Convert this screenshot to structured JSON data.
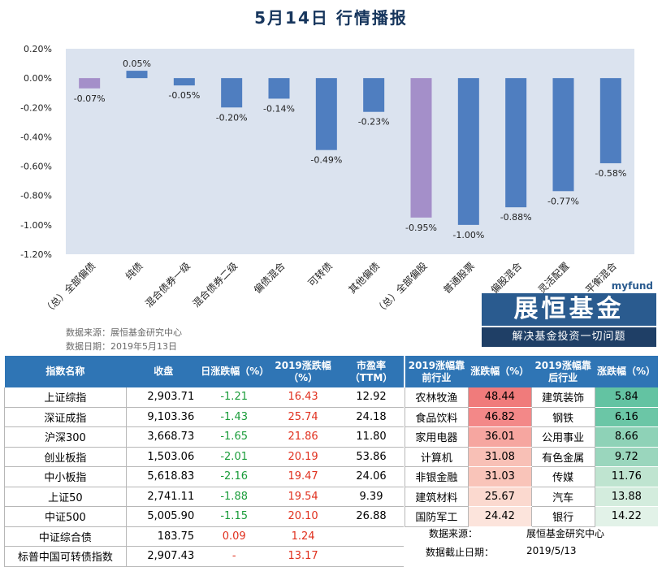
{
  "title": "5月14日  行情播报",
  "chart_data": {
    "type": "bar",
    "categories": [
      "（总）全部偏债",
      "纯债",
      "混合债券一级",
      "混合债券二级",
      "偏债混合",
      "可转债",
      "其他偏债",
      "（总）全部偏股",
      "普通股票",
      "偏股混合",
      "灵活配置",
      "平衡混合"
    ],
    "values": [
      -0.07,
      0.05,
      -0.05,
      -0.2,
      -0.14,
      -0.49,
      -0.23,
      -0.95,
      -1.0,
      -0.88,
      -0.77,
      -0.58
    ],
    "data_labels": [
      "-0.07%",
      "0.05%",
      "-0.05%",
      "-0.20%",
      "-0.14%",
      "-0.49%",
      "-0.23%",
      "-0.95%",
      "-1.00%",
      "-0.88%",
      "-0.77%",
      "-0.58%"
    ],
    "yticks": [
      "0.20%",
      "0.00%",
      "-0.20%",
      "-0.40%",
      "-0.60%",
      "-0.80%",
      "-1.00%",
      "-1.20%"
    ],
    "ylim": [
      -1.2,
      0.2
    ],
    "highlight_colors": [
      "#a48fc9",
      "#4f7ec0",
      "#4f7ec0",
      "#4f7ec0",
      "#4f7ec0",
      "#4f7ec0",
      "#4f7ec0",
      "#a48fc9",
      "#4f7ec0",
      "#4f7ec0",
      "#4f7ec0",
      "#4f7ec0"
    ],
    "plot_bg": "#dbe3ef"
  },
  "source_line1": "数据来源：展恒基金研究中心",
  "source_line2": "数据日期：2019年5月13日",
  "logo": {
    "myfund": "myfund",
    "brand": "展恒基金",
    "slogan": "解决基金投资一切问题"
  },
  "index_table": {
    "headers": [
      "指数名称",
      "收盘",
      "日涨跌幅（%）",
      "2019涨跌幅（%）",
      "市盈率（TTM）"
    ],
    "rows": [
      [
        "上证综指",
        "2,903.71",
        "-1.21",
        "16.43",
        "12.92"
      ],
      [
        "深证成指",
        "9,103.36",
        "-1.43",
        "25.74",
        "24.18"
      ],
      [
        "沪深300",
        "3,668.73",
        "-1.65",
        "21.86",
        "11.80"
      ],
      [
        "创业板指",
        "1,503.06",
        "-2.01",
        "20.19",
        "53.86"
      ],
      [
        "中小板指",
        "5,618.83",
        "-2.16",
        "19.47",
        "24.06"
      ],
      [
        "上证50",
        "2,741.11",
        "-1.88",
        "19.54",
        "9.39"
      ],
      [
        "中证500",
        "5,005.90",
        "-1.15",
        "20.10",
        "26.88"
      ],
      [
        "中证综合债",
        "183.75",
        "0.09",
        "1.24",
        ""
      ],
      [
        "标普中国可转债指数",
        "2,907.43",
        "-",
        "13.17",
        ""
      ]
    ]
  },
  "industry_table": {
    "headers": [
      "2019涨幅靠前行业",
      "涨跌幅（%）",
      "2019涨幅靠后行业",
      "涨跌幅（%）"
    ],
    "rows": [
      [
        "农林牧渔",
        "48.44",
        "建筑装饰",
        "5.84"
      ],
      [
        "食品饮料",
        "46.82",
        "钢铁",
        "6.16"
      ],
      [
        "家用电器",
        "36.01",
        "公用事业",
        "8.66"
      ],
      [
        "计算机",
        "31.08",
        "有色金属",
        "9.72"
      ],
      [
        "非银金融",
        "31.03",
        "传媒",
        "11.76"
      ],
      [
        "建筑材料",
        "25.67",
        "汽车",
        "13.88"
      ],
      [
        "国防军工",
        "24.42",
        "银行",
        "14.22"
      ]
    ],
    "top_colors": [
      "#f07b7b",
      "#f38888",
      "#f6a6a0",
      "#f8c0b6",
      "#f9c4b9",
      "#fbd9cf",
      "#fce4dc"
    ],
    "bottom_colors": [
      "#63c3a2",
      "#6bc6a6",
      "#8ed2b7",
      "#9ad6bd",
      "#bfe4d0",
      "#d3ecdd",
      "#e2f2e8"
    ]
  },
  "footer": {
    "source_label": "数据来源：",
    "source_value": "展恒基金研究中心",
    "date_label": "数据截止日期：",
    "date_value": "2019/5/13"
  }
}
